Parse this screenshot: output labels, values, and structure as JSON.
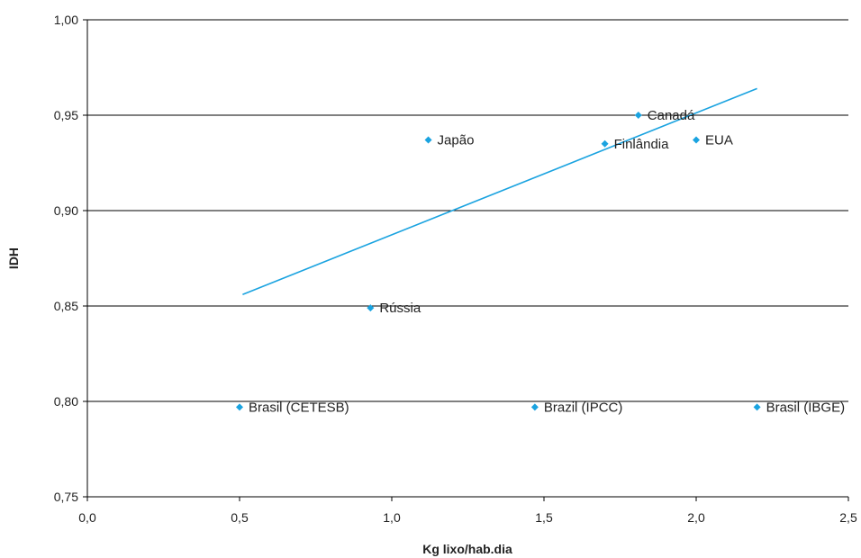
{
  "chart_data": {
    "type": "scatter",
    "title": "",
    "xlabel": "Kg lixo/hab.dia",
    "ylabel": "IDH",
    "xlim": [
      0.0,
      2.5
    ],
    "ylim": [
      0.75,
      1.0
    ],
    "xticks": [
      0.0,
      0.5,
      1.0,
      1.5,
      2.0,
      2.5
    ],
    "xtick_labels": [
      "0,0",
      "0,5",
      "1,0",
      "1,5",
      "2,0",
      "2,5"
    ],
    "yticks": [
      0.75,
      0.8,
      0.85,
      0.9,
      0.95,
      1.0
    ],
    "ytick_labels": [
      "0,75",
      "0,80",
      "0,85",
      "0,90",
      "0,95",
      "1,00"
    ],
    "grid": "horizontal",
    "legend": "none",
    "marker_color": "#1aa3e0",
    "trendline_color": "#1aa3e0",
    "points": [
      {
        "label": "Brasil (CETESB)",
        "x": 0.5,
        "y": 0.797
      },
      {
        "label": "Brazil (IPCC)",
        "x": 1.47,
        "y": 0.797
      },
      {
        "label": "Brasil (IBGE)",
        "x": 2.2,
        "y": 0.797
      },
      {
        "label": "Rússia",
        "x": 0.93,
        "y": 0.849
      },
      {
        "label": "Japão",
        "x": 1.12,
        "y": 0.937
      },
      {
        "label": "Finlândia",
        "x": 1.7,
        "y": 0.935
      },
      {
        "label": "Canadá",
        "x": 1.81,
        "y": 0.95
      },
      {
        "label": "EUA",
        "x": 2.0,
        "y": 0.937
      }
    ],
    "trendline": {
      "x": [
        0.51,
        2.2
      ],
      "y": [
        0.856,
        0.964
      ]
    }
  }
}
